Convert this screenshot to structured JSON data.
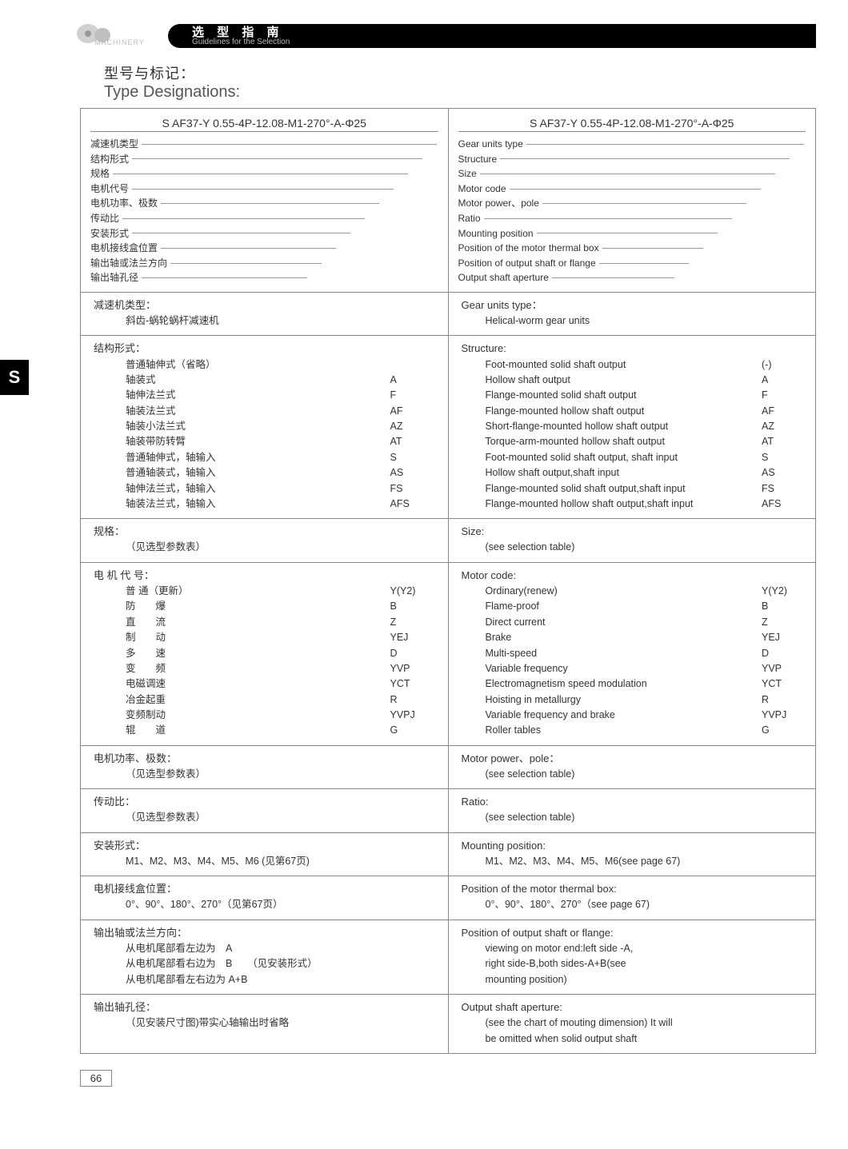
{
  "header": {
    "machinery": "MACHINERY",
    "cn": "选 型 指 南",
    "en": "Guidelines for the Selection"
  },
  "title": {
    "cn": "型号与标记：",
    "en": "Type Designations:"
  },
  "side_tab": "S",
  "code_string": "S AF37-Y 0.55-4P-12.08-M1-270°-A-Φ25",
  "params_cn": [
    "减速机类型",
    "结构形式",
    "规格",
    "电机代号",
    "电机功率、极数",
    "传动比",
    "安装形式",
    "电机接线盒位置",
    "输出轴或法兰方向",
    "输出轴孔径"
  ],
  "params_en": [
    "Gear units type",
    "Structure",
    "Size",
    "Motor code",
    "Motor power、pole",
    "Ratio",
    "Mounting position",
    "Position of the  motor thermal box",
    "Position of output shaft or flange",
    "Output shaft aperture"
  ],
  "sec_gear_type": {
    "cn_title": "减速机类型：",
    "cn_body": "斜齿-蜗轮蜗杆减速机",
    "en_title": "Gear units type：",
    "en_body": "Helical-worm gear units"
  },
  "sec_structure": {
    "cn_title": "结构形式：",
    "cn_items": [
      {
        "label": "普通轴伸式（省略）",
        "code": ""
      },
      {
        "label": "轴装式",
        "code": "A"
      },
      {
        "label": "轴伸法兰式",
        "code": "F"
      },
      {
        "label": "轴装法兰式",
        "code": "AF"
      },
      {
        "label": "轴装小法兰式",
        "code": "AZ"
      },
      {
        "label": "轴装带防转臂",
        "code": "AT"
      },
      {
        "label": "普通轴伸式，轴输入",
        "code": "S"
      },
      {
        "label": "普通轴装式，轴输入",
        "code": "AS"
      },
      {
        "label": "轴伸法兰式，轴输入",
        "code": "FS"
      },
      {
        "label": "轴装法兰式，轴输入",
        "code": "AFS"
      }
    ],
    "en_title": "Structure:",
    "en_items": [
      {
        "label": "Foot-mounted solid shaft output",
        "code": "(-)"
      },
      {
        "label": "Hollow shaft output",
        "code": "A"
      },
      {
        "label": "Flange-mounted solid shaft output",
        "code": "F"
      },
      {
        "label": "Flange-mounted hollow shaft output",
        "code": "AF"
      },
      {
        "label": "Short-flange-mounted hollow shaft output",
        "code": "AZ"
      },
      {
        "label": "Torque-arm-mounted hollow shaft output",
        "code": "AT"
      },
      {
        "label": "Foot-mounted solid shaft output, shaft input",
        "code": "S"
      },
      {
        "label": "Hollow shaft output,shaft input",
        "code": "AS"
      },
      {
        "label": "Flange-mounted solid shaft output,shaft input",
        "code": "FS"
      },
      {
        "label": "Flange-mounted hollow shaft output,shaft input",
        "code": "AFS"
      }
    ]
  },
  "sec_size": {
    "cn_title": "规格：",
    "cn_body": "（见选型参数表）",
    "en_title": "Size:",
    "en_body": "(see selection table)"
  },
  "sec_motor_code": {
    "cn_title": "电 机 代 号：",
    "cn_items": [
      {
        "label": "普 通（更新）",
        "code": "Y(Y2)"
      },
      {
        "label": "防　　爆",
        "code": "B"
      },
      {
        "label": "直　　流",
        "code": "Z"
      },
      {
        "label": "制　　动",
        "code": "YEJ"
      },
      {
        "label": "多　　速",
        "code": "D"
      },
      {
        "label": "变　　频",
        "code": "YVP"
      },
      {
        "label": "电磁调速",
        "code": "YCT"
      },
      {
        "label": "冶金起重",
        "code": "R"
      },
      {
        "label": "变频制动",
        "code": "YVPJ"
      },
      {
        "label": "辊　　道",
        "code": "G"
      }
    ],
    "en_title": "Motor code:",
    "en_items": [
      {
        "label": "Ordinary(renew)",
        "code": "Y(Y2)"
      },
      {
        "label": "Flame-proof",
        "code": "B"
      },
      {
        "label": "Direct current",
        "code": "Z"
      },
      {
        "label": "Brake",
        "code": "YEJ"
      },
      {
        "label": "Multi-speed",
        "code": "D"
      },
      {
        "label": "Variable frequency",
        "code": "YVP"
      },
      {
        "label": "Electromagnetism speed modulation",
        "code": "YCT"
      },
      {
        "label": "Hoisting in metallurgy",
        "code": "R"
      },
      {
        "label": "Variable frequency and brake",
        "code": "YVPJ"
      },
      {
        "label": "Roller tables",
        "code": "G"
      }
    ]
  },
  "sec_motor_power": {
    "cn_title": "电机功率、极数：",
    "cn_body": "（见选型参数表）",
    "en_title": "Motor power、pole：",
    "en_body": "(see selection table)"
  },
  "sec_ratio": {
    "cn_title": "传动比：",
    "cn_body": "（见选型参数表）",
    "en_title": "Ratio:",
    "en_body": "(see selection table)"
  },
  "sec_mounting": {
    "cn_title": "安装形式：",
    "cn_body": "M1、M2、M3、M4、M5、M6 (见第67页)",
    "en_title": "Mounting position:",
    "en_body": "M1、M2、M3、M4、M5、M6(see page 67)"
  },
  "sec_thermal": {
    "cn_title": "电机接线盒位置：",
    "cn_body": "0°、90°、180°、270°（见第67页）",
    "en_title": "Position of the motor thermal box:",
    "en_body": "0°、90°、180°、270°（see page 67)"
  },
  "sec_output_pos": {
    "cn_title": "输出轴或法兰方向：",
    "cn_lines": [
      "从电机尾部看左边为　A",
      "从电机尾部看右边为　B　　（见安装形式）",
      "从电机尾部看左右边为 A+B"
    ],
    "en_title": "Position of output shaft or flange:",
    "en_lines": [
      "viewing on motor end:left side -A,",
      "right side-B,both sides-A+B(see",
      "mounting position)"
    ]
  },
  "sec_aperture": {
    "cn_title": "输出轴孔径：",
    "cn_body": "（见安装尺寸图)带实心轴输出时省略",
    "en_title": "Output shaft aperture:",
    "en_lines": [
      "(see the chart of mouting dimension) It will",
      "be omitted when solid output shaft"
    ]
  },
  "page_number": "66"
}
